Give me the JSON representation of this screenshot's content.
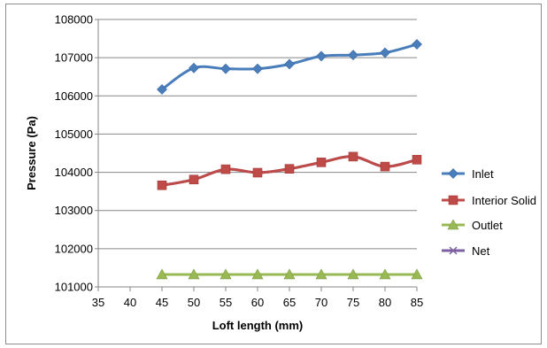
{
  "chart_data": {
    "type": "line",
    "title": "",
    "xlabel": "Loft length (mm)",
    "ylabel": "Pressure (Pa)",
    "xlim": [
      35,
      85
    ],
    "ylim": [
      101000,
      108000
    ],
    "x_ticks": [
      "35",
      "40",
      "45",
      "50",
      "55",
      "60",
      "65",
      "70",
      "75",
      "80",
      "85"
    ],
    "y_ticks": [
      "101000",
      "102000",
      "103000",
      "104000",
      "105000",
      "106000",
      "107000",
      "108000"
    ],
    "grid": "horizontal",
    "legend_position": "right",
    "x": [
      45,
      50,
      55,
      60,
      65,
      70,
      75,
      80,
      85
    ],
    "series": [
      {
        "name": "Inlet",
        "color": "#4a7ebb",
        "marker": "diamond",
        "values": [
          106170,
          106730,
          106710,
          106710,
          106830,
          107040,
          107070,
          107130,
          107350
        ]
      },
      {
        "name": "Interior Solid",
        "color": "#be4b48",
        "marker": "square",
        "values": [
          103660,
          103810,
          104080,
          103990,
          104090,
          104260,
          104410,
          104150,
          104330
        ]
      },
      {
        "name": "Outlet",
        "color": "#98b954",
        "marker": "triangle",
        "values": [
          101325,
          101325,
          101325,
          101325,
          101325,
          101325,
          101325,
          101325,
          101325
        ]
      },
      {
        "name": "Net",
        "color": "#7d60a0",
        "marker": "x",
        "values": [
          103660,
          103810,
          104080,
          103990,
          104090,
          104260,
          104410,
          104150,
          104330
        ]
      }
    ]
  }
}
